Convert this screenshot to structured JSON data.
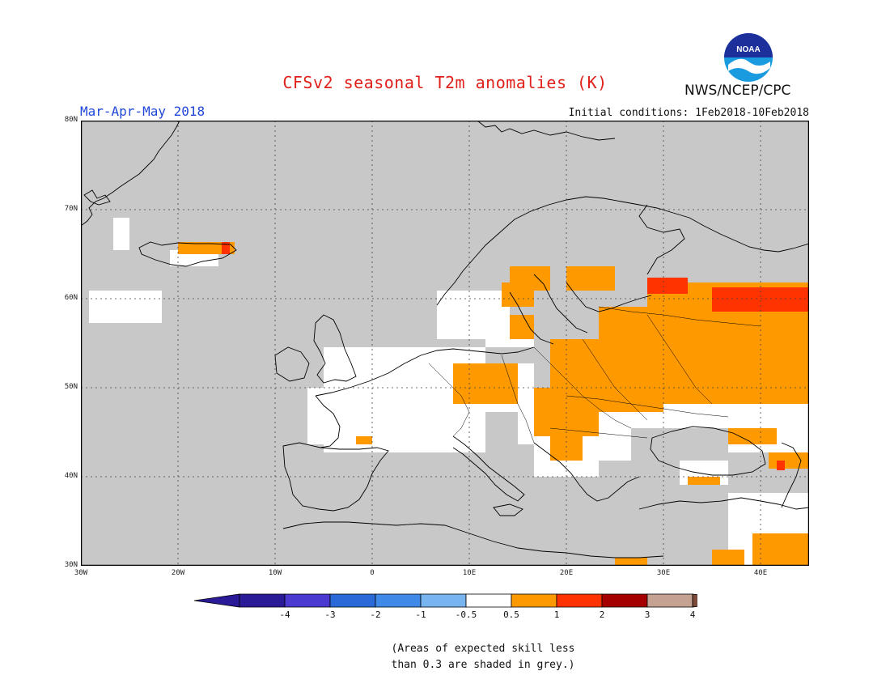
{
  "title": "CFSv2 seasonal T2m anomalies (K)",
  "period": "Mar-Apr-May 2018",
  "initial_conditions": "Initial conditions: 1Feb2018-10Feb2018",
  "agency": "NWS/NCEP/CPC",
  "logo_text": "NOAA",
  "colors": {
    "land_grey": "#c8c8c8",
    "white": "#ffffff",
    "orange": "#ff9900",
    "red_orange": "#ff3300",
    "dark_red": "#a50000",
    "tan": "#c5a192",
    "brown": "#7a4a3a",
    "blues": [
      "#2a1a98",
      "#4a3ad0",
      "#2a6ad8",
      "#3f8ae8",
      "#78b4f0"
    ]
  },
  "map": {
    "lon_range": [
      -30,
      45
    ],
    "lat_range": [
      30,
      80
    ],
    "lon_ticks": [
      "30W",
      "20W",
      "10W",
      "0",
      "10E",
      "20E",
      "30E",
      "40E"
    ],
    "lat_ticks": [
      "30N",
      "40N",
      "50N",
      "60N",
      "70N",
      "80N"
    ],
    "grid": "dotted"
  },
  "colorbar": {
    "labels": [
      "-4",
      "-3",
      "-2",
      "-1",
      "-0.5",
      "0.5",
      "1",
      "2",
      "3",
      "4"
    ]
  },
  "note_line1": "(Areas of expected skill less",
  "note_line2": "than 0.3 are shaded in grey.)"
}
